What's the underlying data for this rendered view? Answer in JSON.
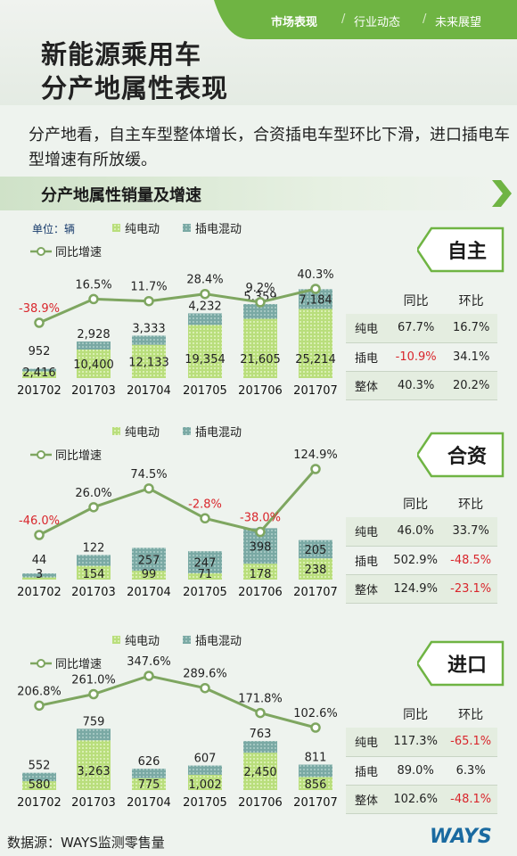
{
  "header": {
    "nav": [
      "市场表现",
      "行业动态",
      "未来展望"
    ],
    "separator": "/",
    "title_line1": "新能源乘用车",
    "title_line2": "分产地属性表现",
    "accent_color": "#6fb443"
  },
  "intro": "分产地看，自主车型整体增长，合资插电车型环比下滑，进口插电车型增速有所放缓。",
  "section_title": "分产地属性销量及增速",
  "footer": {
    "source": "数据源：WAYS监测零售量",
    "logo": "WAYS"
  },
  "legend": {
    "unit": "单位：辆",
    "bev": "纯电动",
    "phev": "插电混动",
    "growth": "同比增速"
  },
  "colors": {
    "bev": "#b9de7c",
    "phev": "#7aa9a4",
    "growth": "#7ea660",
    "negative": "#d9262c"
  },
  "panels": [
    {
      "badge": "自主",
      "table": {
        "headers": [
          "同比",
          "环比"
        ],
        "rows": [
          {
            "label": "纯电",
            "yoy": "67.7%",
            "mom": "16.7%"
          },
          {
            "label": "插电",
            "yoy": "-10.9%",
            "mom": "34.1%"
          },
          {
            "label": "整体",
            "yoy": "40.3%",
            "mom": "20.2%"
          }
        ]
      }
    },
    {
      "badge": "合资",
      "table": {
        "headers": [
          "同比",
          "环比"
        ],
        "rows": [
          {
            "label": "纯电",
            "yoy": "46.0%",
            "mom": "33.7%"
          },
          {
            "label": "插电",
            "yoy": "502.9%",
            "mom": "-48.5%"
          },
          {
            "label": "整体",
            "yoy": "124.9%",
            "mom": "-23.1%"
          }
        ]
      }
    },
    {
      "badge": "进口",
      "table": {
        "headers": [
          "同比",
          "环比"
        ],
        "rows": [
          {
            "label": "纯电",
            "yoy": "117.3%",
            "mom": "-65.1%"
          },
          {
            "label": "插电",
            "yoy": "89.0%",
            "mom": "6.3%"
          },
          {
            "label": "整体",
            "yoy": "102.6%",
            "mom": "-48.1%"
          }
        ]
      }
    }
  ],
  "chart_data": [
    {
      "type": "bar",
      "stacked": true,
      "categories": [
        "201702",
        "201703",
        "201704",
        "201705",
        "201706",
        "201707"
      ],
      "series": [
        {
          "name": "纯电动",
          "values": [
            2416,
            10400,
            12133,
            19354,
            21605,
            25214
          ]
        },
        {
          "name": "插电混动",
          "values": [
            952,
            2928,
            3333,
            4232,
            5359,
            7184
          ]
        },
        {
          "name": "同比增速",
          "type": "line",
          "values": [
            -38.9,
            16.5,
            11.7,
            28.4,
            9.2,
            40.3
          ]
        }
      ],
      "value_labels": {
        "bev": [
          "2,416",
          "10,400",
          "12,133",
          "19,354",
          "21,605",
          "25,214"
        ],
        "phev": [
          "952",
          "2,928",
          "3,333",
          "4,232",
          "5,359",
          "7,184"
        ],
        "growth": [
          "-38.9%",
          "16.5%",
          "11.7%",
          "28.4%",
          "9.2%",
          "40.3%"
        ]
      }
    },
    {
      "type": "bar",
      "stacked": true,
      "categories": [
        "201702",
        "201703",
        "201704",
        "201705",
        "201706",
        "201707"
      ],
      "series": [
        {
          "name": "纯电动",
          "values": [
            3,
            154,
            99,
            71,
            178,
            238
          ]
        },
        {
          "name": "插电混动",
          "values": [
            44,
            122,
            257,
            247,
            398,
            205
          ]
        },
        {
          "name": "同比增速",
          "type": "line",
          "values": [
            -46.0,
            26.0,
            74.5,
            -2.8,
            -38.0,
            124.9
          ]
        }
      ],
      "value_labels": {
        "bev": [
          "3",
          "154",
          "99",
          "71",
          "178",
          "238"
        ],
        "phev": [
          "44",
          "122",
          "257",
          "247",
          "398",
          "205"
        ],
        "growth": [
          "-46.0%",
          "26.0%",
          "74.5%",
          "-2.8%",
          "-38.0%",
          "124.9%"
        ]
      }
    },
    {
      "type": "bar",
      "stacked": true,
      "categories": [
        "201702",
        "201703",
        "201704",
        "201705",
        "201706",
        "201707"
      ],
      "series": [
        {
          "name": "纯电动",
          "values": [
            580,
            3263,
            775,
            1002,
            2450,
            856
          ]
        },
        {
          "name": "插电混动",
          "values": [
            552,
            759,
            626,
            607,
            763,
            811
          ]
        },
        {
          "name": "同比增速",
          "type": "line",
          "values": [
            206.8,
            261.0,
            347.6,
            289.6,
            171.8,
            102.6
          ]
        }
      ],
      "value_labels": {
        "bev": [
          "580",
          "3,263",
          "775",
          "1,002",
          "2,450",
          "856"
        ],
        "phev": [
          "552",
          "759",
          "626",
          "607",
          "763",
          "811"
        ],
        "growth": [
          "206.8%",
          "261.0%",
          "347.6%",
          "289.6%",
          "171.8%",
          "102.6%"
        ]
      }
    }
  ]
}
